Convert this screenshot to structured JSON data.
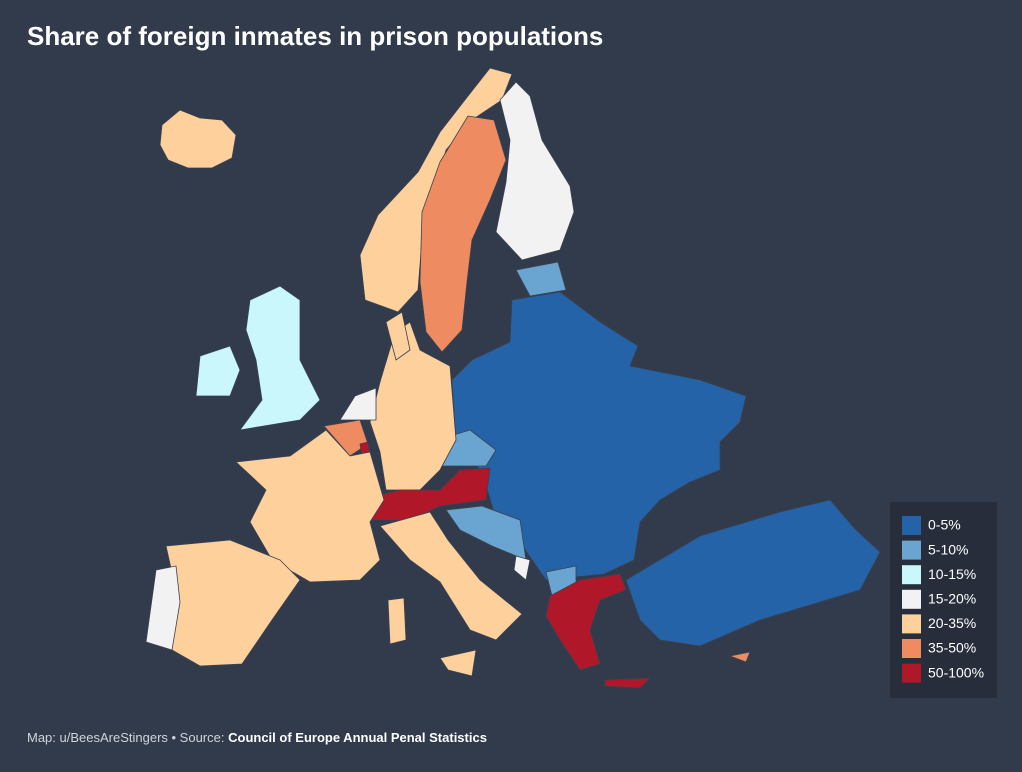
{
  "title": "Share of foreign inmates in prison populations",
  "legend": [
    {
      "label": "0-5%",
      "color": "#2563a8"
    },
    {
      "label": "5-10%",
      "color": "#6aa5d1"
    },
    {
      "label": "10-15%",
      "color": "#c9f7fb"
    },
    {
      "label": "15-20%",
      "color": "#f2f2f2"
    },
    {
      "label": "20-35%",
      "color": "#fdd09c"
    },
    {
      "label": "35-50%",
      "color": "#ee8b61"
    },
    {
      "label": "50-100%",
      "color": "#b0182a"
    }
  ],
  "credit": "Map: u/BeesAreStingers • Source:",
  "source": "Council of Europe Annual Penal Statistics"
}
